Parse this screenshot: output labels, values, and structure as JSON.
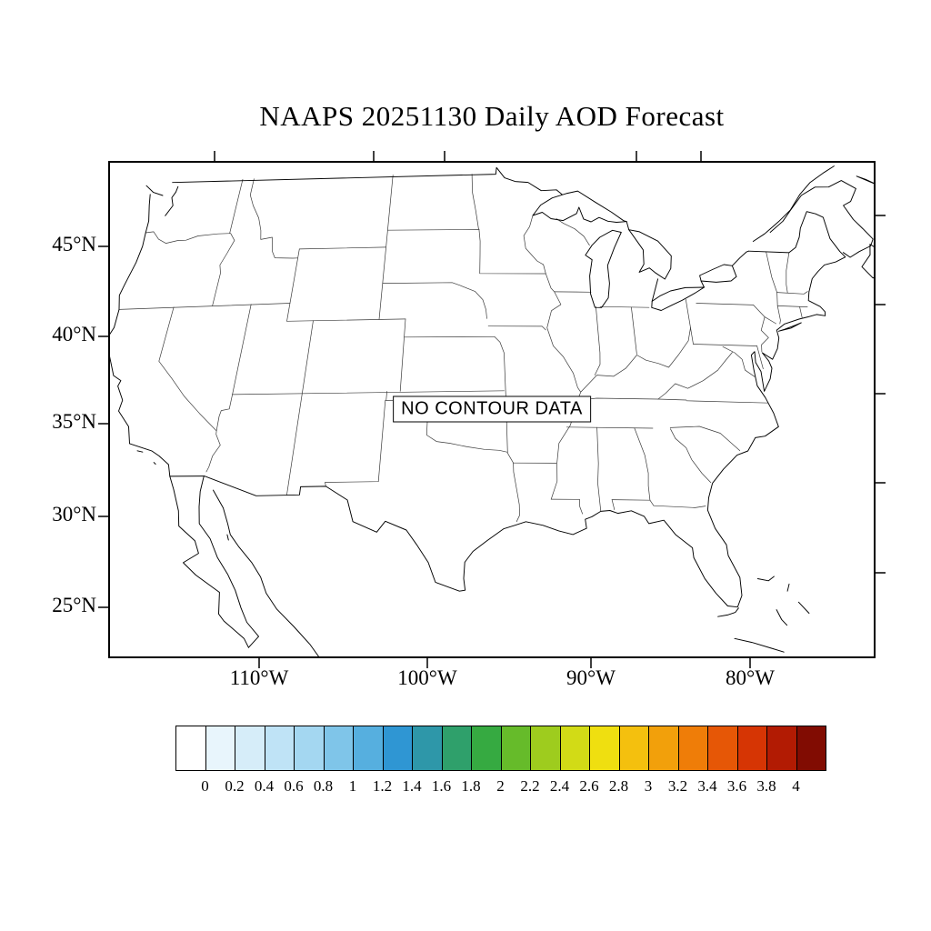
{
  "title": "NAAPS 20251130 Daily AOD Forecast",
  "map": {
    "no_data_label": "NO CONTOUR DATA",
    "y_axis": {
      "tick_labels": [
        "45°N",
        "40°N",
        "35°N",
        "30°N",
        "25°N"
      ]
    },
    "x_axis": {
      "tick_labels": [
        "110°W",
        "100°W",
        "90°W",
        "80°W"
      ]
    }
  },
  "chart_data": {
    "type": "map",
    "title": "NAAPS 20251130 Daily AOD Forecast",
    "model": "NAAPS",
    "date": "20251130",
    "variable": "Daily AOD Forecast",
    "region": "Contiguous United States with state boundaries",
    "status": "NO CONTOUR DATA",
    "lat_ticks": [
      "45°N",
      "40°N",
      "35°N",
      "30°N",
      "25°N"
    ],
    "lon_ticks": [
      "110°W",
      "100°W",
      "90°W",
      "80°W"
    ],
    "colorbar": {
      "orientation": "horizontal",
      "tick_labels": [
        "0",
        "0.2",
        "0.4",
        "0.6",
        "0.8",
        "1",
        "1.2",
        "1.4",
        "1.6",
        "1.8",
        "2",
        "2.2",
        "2.4",
        "2.6",
        "2.8",
        "3",
        "3.2",
        "3.4",
        "3.6",
        "3.8",
        "4"
      ],
      "colors": [
        "#FFFFFF",
        "#E8F5FC",
        "#D6EDF9",
        "#BFE3F6",
        "#A4D7F1",
        "#7FC5E9",
        "#56AFDF",
        "#2F96D3",
        "#2E97A9",
        "#2FA06B",
        "#36AA41",
        "#66BB2A",
        "#9ECC1E",
        "#D2DB16",
        "#EFDF10",
        "#F4C00E",
        "#F2A00B",
        "#EF7D08",
        "#E65706",
        "#D63504",
        "#B21B03",
        "#810C02"
      ]
    }
  }
}
